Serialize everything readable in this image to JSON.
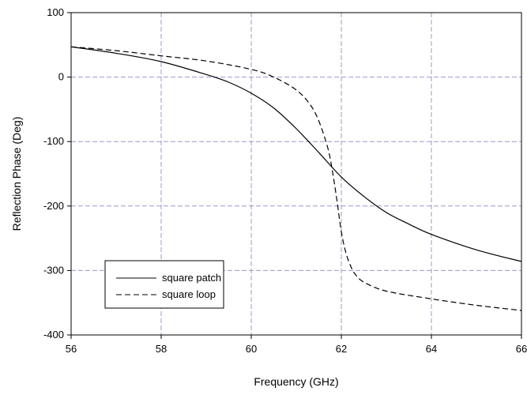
{
  "chart_data": {
    "type": "line",
    "title": "",
    "xlabel": "Frequency (GHz)",
    "ylabel": "Reflection Phase (Deg)",
    "xlim": [
      56,
      66
    ],
    "ylim": [
      -400,
      100
    ],
    "xticks": [
      56,
      58,
      60,
      62,
      64,
      66
    ],
    "yticks": [
      -400,
      -300,
      -200,
      -100,
      0,
      100
    ],
    "x_tick_labels": [
      "56",
      "58",
      "60",
      "62",
      "64",
      "66"
    ],
    "y_tick_labels": [
      "-400",
      "-300",
      "-200",
      "-100",
      "0",
      "100"
    ],
    "grid": true,
    "grid_style": "dashed",
    "grid_color": "#9999cc",
    "legend_position": "bottom-left",
    "series": [
      {
        "name": "square patch",
        "line_style": "solid",
        "color": "#000000",
        "x": [
          56,
          57,
          58,
          59,
          59.5,
          60,
          60.5,
          61,
          61.5,
          62,
          62.5,
          63,
          63.5,
          64,
          65,
          66
        ],
        "y": [
          47,
          37,
          24,
          4,
          -8,
          -25,
          -48,
          -80,
          -117,
          -155,
          -185,
          -210,
          -228,
          -244,
          -268,
          -286
        ]
      },
      {
        "name": "square loop",
        "line_style": "dashed",
        "color": "#000000",
        "x": [
          56,
          57,
          58,
          59,
          60,
          60.5,
          61,
          61.3,
          61.5,
          61.7,
          61.8,
          61.9,
          62,
          62.1,
          62.2,
          62.3,
          62.5,
          63,
          64,
          65,
          66
        ],
        "y": [
          47,
          41,
          33,
          25,
          12,
          0,
          -20,
          -42,
          -68,
          -110,
          -145,
          -190,
          -240,
          -272,
          -292,
          -305,
          -318,
          -332,
          -344,
          -354,
          -362
        ]
      }
    ]
  }
}
